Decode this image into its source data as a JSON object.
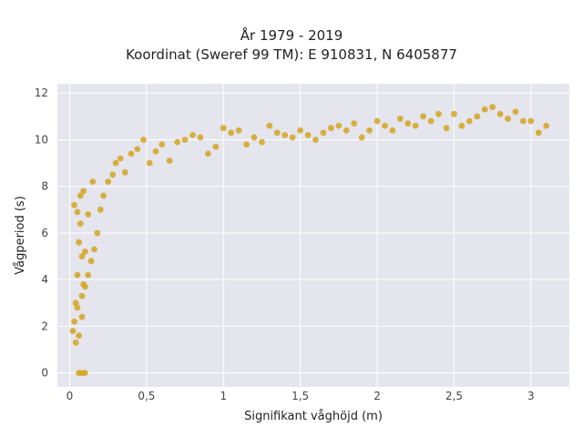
{
  "chart_data": {
    "type": "scatter",
    "title": "År 1979 - 2019",
    "subtitle": "Koordinat (Sweref 99 TM): E 910831, N 6405877",
    "xlabel": "Signifikant våghöjd (m)",
    "ylabel": "Vågperiod (s)",
    "xlim": [
      -0.08,
      3.25
    ],
    "ylim": [
      -0.6,
      12.4
    ],
    "x_ticks": [
      0,
      0.5,
      1,
      1.5,
      2,
      2.5,
      3
    ],
    "x_tick_labels": [
      "0",
      "0,5",
      "1",
      "1,5",
      "2",
      "2,5",
      "3"
    ],
    "y_ticks": [
      0,
      2,
      4,
      6,
      8,
      10,
      12
    ],
    "y_tick_labels": [
      "0",
      "2",
      "4",
      "6",
      "8",
      "10",
      "12"
    ],
    "grid": true,
    "legend": "none",
    "point_color": "#D4A520",
    "background_color": "#E5E5EE",
    "series": [
      {
        "x": [
          0.02,
          0.03,
          0.04,
          0.05,
          0.06,
          0.07,
          0.08,
          0.09,
          0.04,
          0.06,
          0.08,
          0.03,
          0.05,
          0.07,
          0.09,
          0.1,
          0.12,
          0.15,
          0.05,
          0.08,
          0.1,
          0.12,
          0.14,
          0.16,
          0.18,
          0.2,
          0.22,
          0.25,
          0.28,
          0.3,
          0.33,
          0.36,
          0.4,
          0.44,
          0.48,
          0.52,
          0.56,
          0.6,
          0.65,
          0.7,
          0.75,
          0.8,
          0.85,
          0.9,
          0.95,
          1.0,
          1.05,
          1.1,
          1.15,
          1.2,
          1.25,
          1.3,
          1.35,
          1.4,
          1.45,
          1.5,
          1.55,
          1.6,
          1.65,
          1.7,
          1.75,
          1.8,
          1.85,
          1.9,
          1.95,
          2.0,
          2.05,
          2.1,
          2.15,
          2.2,
          2.25,
          2.3,
          2.35,
          2.4,
          2.45,
          2.5,
          2.55,
          2.6,
          2.65,
          2.7,
          2.75,
          2.8,
          2.85,
          2.9,
          2.95,
          3.0,
          3.05,
          3.1,
          0.06,
          0.08,
          0.1
        ],
        "y": [
          1.8,
          2.2,
          3.0,
          4.2,
          5.6,
          6.4,
          5.0,
          3.8,
          1.3,
          1.6,
          2.4,
          7.2,
          6.9,
          7.6,
          7.8,
          5.2,
          6.8,
          8.2,
          2.8,
          3.3,
          3.7,
          4.2,
          4.8,
          5.3,
          6.0,
          7.0,
          7.6,
          8.2,
          8.5,
          9.0,
          9.2,
          8.6,
          9.4,
          9.6,
          10.0,
          9.0,
          9.5,
          9.8,
          9.1,
          9.9,
          10.0,
          10.2,
          10.1,
          9.4,
          9.7,
          10.5,
          10.3,
          10.4,
          9.8,
          10.1,
          9.9,
          10.6,
          10.3,
          10.2,
          10.1,
          10.4,
          10.2,
          10.0,
          10.3,
          10.5,
          10.6,
          10.4,
          10.7,
          10.1,
          10.4,
          10.8,
          10.6,
          10.4,
          10.9,
          10.7,
          10.6,
          11.0,
          10.8,
          11.1,
          10.5,
          11.1,
          10.6,
          10.8,
          11.0,
          11.3,
          11.4,
          11.1,
          10.9,
          11.2,
          10.8,
          10.8,
          10.3,
          10.6,
          0.0,
          0.0,
          0.0
        ]
      }
    ]
  }
}
